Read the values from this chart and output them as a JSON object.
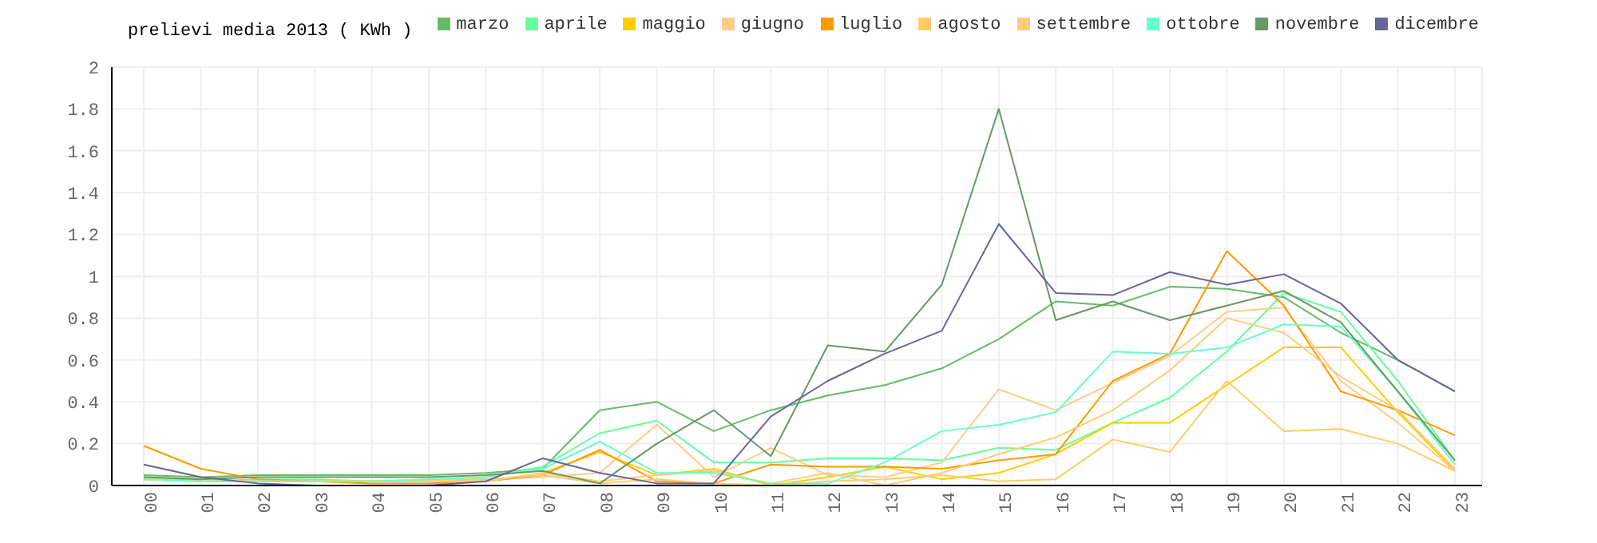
{
  "chart_data": {
    "type": "line",
    "title": "prelievi media 2013 ( KWh )",
    "categories": [
      "00",
      "01",
      "02",
      "03",
      "04",
      "05",
      "06",
      "07",
      "08",
      "09",
      "10",
      "11",
      "12",
      "13",
      "14",
      "15",
      "16",
      "17",
      "18",
      "19",
      "20",
      "21",
      "22",
      "23"
    ],
    "series": [
      {
        "name": "marzo",
        "color": "#66bb66",
        "values": [
          0.05,
          0.04,
          0.05,
          0.05,
          0.05,
          0.05,
          0.06,
          0.08,
          0.36,
          0.4,
          0.26,
          0.36,
          0.43,
          0.48,
          0.56,
          0.7,
          0.88,
          0.86,
          0.95,
          0.94,
          0.9,
          0.73,
          0.6,
          0.45
        ]
      },
      {
        "name": "aprile",
        "color": "#66ff99",
        "values": [
          0.04,
          0.02,
          0.03,
          0.03,
          0.02,
          0.02,
          0.04,
          0.09,
          0.25,
          0.31,
          0.11,
          0.11,
          0.13,
          0.13,
          0.12,
          0.18,
          0.17,
          0.3,
          0.42,
          0.64,
          0.92,
          0.83,
          0.5,
          0.12
        ]
      },
      {
        "name": "maggio",
        "color": "#ffcc00",
        "values": [
          0.03,
          0.02,
          0.02,
          0.02,
          0.02,
          0.02,
          0.02,
          0.06,
          0.16,
          0.05,
          0.08,
          0.0,
          0.04,
          0.09,
          0.03,
          0.06,
          0.15,
          0.3,
          0.3,
          0.48,
          0.66,
          0.66,
          0.35,
          0.07
        ]
      },
      {
        "name": "giugno",
        "color": "#ffcc88",
        "values": [
          0.03,
          0.02,
          0.02,
          0.02,
          0.02,
          0.02,
          0.03,
          0.04,
          0.06,
          0.29,
          0.04,
          0.18,
          0.05,
          0.04,
          0.11,
          0.46,
          0.36,
          0.49,
          0.62,
          0.83,
          0.85,
          0.5,
          0.3,
          0.07
        ]
      },
      {
        "name": "luglio",
        "color": "#ff9900",
        "values": [
          0.19,
          0.08,
          0.03,
          0.02,
          0.01,
          0.01,
          0.02,
          0.05,
          0.17,
          0.02,
          0.01,
          0.1,
          0.09,
          0.09,
          0.08,
          0.12,
          0.15,
          0.5,
          0.63,
          1.12,
          0.86,
          0.45,
          0.36,
          0.24
        ]
      },
      {
        "name": "agosto",
        "color": "#ffcc66",
        "values": [
          0.03,
          0.02,
          0.02,
          0.02,
          0.02,
          0.03,
          0.03,
          0.05,
          0.01,
          0.03,
          0.01,
          0.0,
          0.02,
          0.03,
          0.05,
          0.02,
          0.03,
          0.22,
          0.16,
          0.5,
          0.26,
          0.27,
          0.2,
          0.07
        ]
      },
      {
        "name": "settembre",
        "color": "#ffcc77",
        "values": [
          0.04,
          0.03,
          0.02,
          0.02,
          0.02,
          0.02,
          0.02,
          0.06,
          0.02,
          0.05,
          0.07,
          0.01,
          0.06,
          0.0,
          0.06,
          0.15,
          0.23,
          0.36,
          0.55,
          0.8,
          0.73,
          0.52,
          0.36,
          0.08
        ]
      },
      {
        "name": "ottobre",
        "color": "#66ffcc",
        "values": [
          0.03,
          0.02,
          0.02,
          0.02,
          0.02,
          0.03,
          0.04,
          0.08,
          0.21,
          0.06,
          0.06,
          0.01,
          0.01,
          0.11,
          0.26,
          0.29,
          0.35,
          0.64,
          0.63,
          0.66,
          0.77,
          0.76,
          0.45,
          0.1
        ]
      },
      {
        "name": "novembre",
        "color": "#669966",
        "values": [
          0.04,
          0.03,
          0.04,
          0.04,
          0.04,
          0.04,
          0.05,
          0.07,
          0.01,
          0.2,
          0.36,
          0.14,
          0.67,
          0.64,
          0.96,
          1.8,
          0.79,
          0.88,
          0.79,
          0.86,
          0.93,
          0.78,
          0.45,
          0.12
        ]
      },
      {
        "name": "dicembre",
        "color": "#666699",
        "values": [
          0.1,
          0.04,
          0.01,
          0.0,
          0.0,
          0.0,
          0.02,
          0.13,
          0.06,
          0.01,
          0.01,
          0.33,
          0.5,
          0.63,
          0.74,
          1.25,
          0.92,
          0.91,
          1.02,
          0.96,
          1.01,
          0.87,
          0.6,
          0.45
        ]
      }
    ],
    "ylim": [
      0,
      2
    ],
    "yticks": [
      0,
      0.2,
      0.4,
      0.6,
      0.8,
      1,
      1.2,
      1.4,
      1.6,
      1.8,
      2
    ],
    "grid": true,
    "legend": "top right",
    "marker": "none",
    "line_style": "solid"
  }
}
